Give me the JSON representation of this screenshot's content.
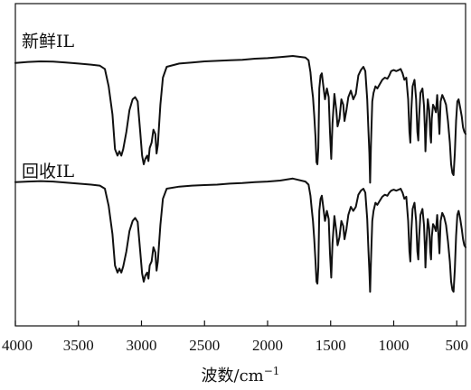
{
  "chart_data": {
    "type": "line",
    "title": "",
    "xlabel": "波数/cm",
    "xlabel_superscript": "−1",
    "ylabel": "",
    "xlim": [
      4000,
      430
    ],
    "x_reversed": true,
    "xticks": [
      4000,
      3500,
      3000,
      2500,
      2000,
      1500,
      1000,
      500
    ],
    "grid": false,
    "legend": "none",
    "y_units": "relative transmittance (stacked, offset)",
    "line_color": "#111111",
    "series": [
      {
        "name": "新鲜IL",
        "offset": 1,
        "points": [
          [
            4000,
            0.935
          ],
          [
            3900,
            0.945
          ],
          [
            3800,
            0.95
          ],
          [
            3700,
            0.948
          ],
          [
            3600,
            0.94
          ],
          [
            3500,
            0.93
          ],
          [
            3400,
            0.92
          ],
          [
            3330,
            0.91
          ],
          [
            3290,
            0.88
          ],
          [
            3260,
            0.72
          ],
          [
            3230,
            0.46
          ],
          [
            3210,
            0.14
          ],
          [
            3190,
            0.08
          ],
          [
            3175,
            0.12
          ],
          [
            3160,
            0.08
          ],
          [
            3145,
            0.14
          ],
          [
            3120,
            0.3
          ],
          [
            3095,
            0.5
          ],
          [
            3070,
            0.6
          ],
          [
            3050,
            0.62
          ],
          [
            3030,
            0.58
          ],
          [
            3010,
            0.3
          ],
          [
            2995,
            0.08
          ],
          [
            2982,
            0.0
          ],
          [
            2970,
            0.05
          ],
          [
            2955,
            0.08
          ],
          [
            2945,
            0.03
          ],
          [
            2935,
            0.15
          ],
          [
            2920,
            0.2
          ],
          [
            2905,
            0.32
          ],
          [
            2890,
            0.28
          ],
          [
            2880,
            0.1
          ],
          [
            2870,
            0.18
          ],
          [
            2850,
            0.55
          ],
          [
            2830,
            0.8
          ],
          [
            2800,
            0.9
          ],
          [
            2700,
            0.93
          ],
          [
            2600,
            0.94
          ],
          [
            2500,
            0.95
          ],
          [
            2400,
            0.955
          ],
          [
            2300,
            0.96
          ],
          [
            2200,
            0.965
          ],
          [
            2100,
            0.975
          ],
          [
            2000,
            0.98
          ],
          [
            1900,
            0.99
          ],
          [
            1800,
            1.0
          ],
          [
            1700,
            0.985
          ],
          [
            1675,
            0.96
          ],
          [
            1660,
            0.85
          ],
          [
            1650,
            0.72
          ],
          [
            1640,
            0.62
          ],
          [
            1630,
            0.45
          ],
          [
            1620,
            0.25
          ],
          [
            1612,
            0.02
          ],
          [
            1605,
            0.0
          ],
          [
            1598,
            0.15
          ],
          [
            1590,
            0.7
          ],
          [
            1580,
            0.82
          ],
          [
            1570,
            0.84
          ],
          [
            1560,
            0.74
          ],
          [
            1545,
            0.6
          ],
          [
            1530,
            0.7
          ],
          [
            1515,
            0.62
          ],
          [
            1505,
            0.3
          ],
          [
            1495,
            0.05
          ],
          [
            1485,
            0.38
          ],
          [
            1470,
            0.65
          ],
          [
            1455,
            0.5
          ],
          [
            1445,
            0.35
          ],
          [
            1430,
            0.42
          ],
          [
            1415,
            0.6
          ],
          [
            1400,
            0.55
          ],
          [
            1390,
            0.4
          ],
          [
            1375,
            0.5
          ],
          [
            1360,
            0.62
          ],
          [
            1340,
            0.68
          ],
          [
            1320,
            0.6
          ],
          [
            1300,
            0.65
          ],
          [
            1280,
            0.82
          ],
          [
            1260,
            0.87
          ],
          [
            1240,
            0.9
          ],
          [
            1225,
            0.86
          ],
          [
            1210,
            0.6
          ],
          [
            1200,
            0.3
          ],
          [
            1193,
            0.1
          ],
          [
            1187,
            -0.17
          ],
          [
            1180,
            0.2
          ],
          [
            1170,
            0.58
          ],
          [
            1160,
            0.66
          ],
          [
            1145,
            0.72
          ],
          [
            1130,
            0.7
          ],
          [
            1110,
            0.74
          ],
          [
            1090,
            0.78
          ],
          [
            1070,
            0.8
          ],
          [
            1050,
            0.79
          ],
          [
            1035,
            0.82
          ],
          [
            1020,
            0.86
          ],
          [
            1000,
            0.87
          ],
          [
            980,
            0.86
          ],
          [
            960,
            0.87
          ],
          [
            945,
            0.88
          ],
          [
            930,
            0.84
          ],
          [
            915,
            0.78
          ],
          [
            900,
            0.8
          ],
          [
            885,
            0.6
          ],
          [
            875,
            0.3
          ],
          [
            868,
            0.2
          ],
          [
            860,
            0.5
          ],
          [
            850,
            0.72
          ],
          [
            835,
            0.78
          ],
          [
            822,
            0.6
          ],
          [
            812,
            0.3
          ],
          [
            805,
            0.22
          ],
          [
            798,
            0.45
          ],
          [
            788,
            0.66
          ],
          [
            772,
            0.7
          ],
          [
            760,
            0.54
          ],
          [
            752,
            0.3
          ],
          [
            748,
            0.12
          ],
          [
            742,
            0.32
          ],
          [
            730,
            0.6
          ],
          [
            718,
            0.5
          ],
          [
            710,
            0.28
          ],
          [
            704,
            0.2
          ],
          [
            698,
            0.42
          ],
          [
            688,
            0.55
          ],
          [
            676,
            0.52
          ],
          [
            665,
            0.48
          ],
          [
            655,
            0.64
          ],
          [
            645,
            0.45
          ],
          [
            637,
            0.28
          ],
          [
            628,
            0.58
          ],
          [
            615,
            0.64
          ],
          [
            600,
            0.6
          ],
          [
            585,
            0.55
          ],
          [
            570,
            0.4
          ],
          [
            555,
            0.2
          ],
          [
            545,
            0.0
          ],
          [
            535,
            -0.08
          ],
          [
            525,
            -0.1
          ],
          [
            515,
            0.1
          ],
          [
            505,
            0.4
          ],
          [
            495,
            0.58
          ],
          [
            485,
            0.6
          ],
          [
            472,
            0.52
          ],
          [
            460,
            0.44
          ],
          [
            450,
            0.34
          ],
          [
            440,
            0.3
          ],
          [
            430,
            0.28
          ]
        ]
      },
      {
        "name": "回收IL",
        "offset": 0,
        "points": [
          [
            4000,
            0.985
          ],
          [
            3900,
            0.99
          ],
          [
            3800,
            0.995
          ],
          [
            3700,
            0.99
          ],
          [
            3600,
            0.98
          ],
          [
            3500,
            0.97
          ],
          [
            3400,
            0.96
          ],
          [
            3330,
            0.95
          ],
          [
            3290,
            0.92
          ],
          [
            3260,
            0.75
          ],
          [
            3230,
            0.47
          ],
          [
            3210,
            0.16
          ],
          [
            3190,
            0.09
          ],
          [
            3175,
            0.13
          ],
          [
            3160,
            0.09
          ],
          [
            3145,
            0.15
          ],
          [
            3120,
            0.3
          ],
          [
            3095,
            0.5
          ],
          [
            3070,
            0.6
          ],
          [
            3050,
            0.63
          ],
          [
            3030,
            0.59
          ],
          [
            3010,
            0.3
          ],
          [
            2995,
            0.08
          ],
          [
            2982,
            0.0
          ],
          [
            2970,
            0.06
          ],
          [
            2955,
            0.09
          ],
          [
            2945,
            0.03
          ],
          [
            2935,
            0.16
          ],
          [
            2920,
            0.2
          ],
          [
            2905,
            0.34
          ],
          [
            2890,
            0.29
          ],
          [
            2880,
            0.11
          ],
          [
            2870,
            0.2
          ],
          [
            2850,
            0.56
          ],
          [
            2830,
            0.82
          ],
          [
            2800,
            0.92
          ],
          [
            2700,
            0.94
          ],
          [
            2600,
            0.95
          ],
          [
            2500,
            0.955
          ],
          [
            2400,
            0.96
          ],
          [
            2300,
            0.97
          ],
          [
            2200,
            0.975
          ],
          [
            2100,
            0.985
          ],
          [
            2000,
            0.99
          ],
          [
            1900,
            1.0
          ],
          [
            1800,
            1.02
          ],
          [
            1700,
            0.99
          ],
          [
            1675,
            0.96
          ],
          [
            1660,
            0.85
          ],
          [
            1650,
            0.72
          ],
          [
            1640,
            0.6
          ],
          [
            1630,
            0.42
          ],
          [
            1620,
            0.2
          ],
          [
            1612,
            0.0
          ],
          [
            1605,
            -0.02
          ],
          [
            1598,
            0.14
          ],
          [
            1590,
            0.7
          ],
          [
            1580,
            0.82
          ],
          [
            1570,
            0.85
          ],
          [
            1560,
            0.75
          ],
          [
            1545,
            0.6
          ],
          [
            1530,
            0.7
          ],
          [
            1515,
            0.62
          ],
          [
            1505,
            0.28
          ],
          [
            1495,
            0.04
          ],
          [
            1485,
            0.38
          ],
          [
            1470,
            0.65
          ],
          [
            1455,
            0.5
          ],
          [
            1445,
            0.36
          ],
          [
            1430,
            0.44
          ],
          [
            1415,
            0.6
          ],
          [
            1400,
            0.55
          ],
          [
            1390,
            0.42
          ],
          [
            1375,
            0.52
          ],
          [
            1360,
            0.66
          ],
          [
            1340,
            0.74
          ],
          [
            1320,
            0.7
          ],
          [
            1300,
            0.74
          ],
          [
            1280,
            0.86
          ],
          [
            1260,
            0.9
          ],
          [
            1240,
            0.92
          ],
          [
            1225,
            0.88
          ],
          [
            1210,
            0.62
          ],
          [
            1200,
            0.3
          ],
          [
            1193,
            0.1
          ],
          [
            1187,
            -0.1
          ],
          [
            1180,
            0.22
          ],
          [
            1170,
            0.6
          ],
          [
            1160,
            0.7
          ],
          [
            1145,
            0.78
          ],
          [
            1130,
            0.76
          ],
          [
            1110,
            0.8
          ],
          [
            1090,
            0.84
          ],
          [
            1070,
            0.86
          ],
          [
            1050,
            0.85
          ],
          [
            1035,
            0.88
          ],
          [
            1020,
            0.9
          ],
          [
            1000,
            0.91
          ],
          [
            980,
            0.9
          ],
          [
            960,
            0.91
          ],
          [
            945,
            0.92
          ],
          [
            930,
            0.88
          ],
          [
            915,
            0.82
          ],
          [
            900,
            0.84
          ],
          [
            885,
            0.6
          ],
          [
            875,
            0.3
          ],
          [
            868,
            0.2
          ],
          [
            860,
            0.5
          ],
          [
            850,
            0.72
          ],
          [
            835,
            0.78
          ],
          [
            822,
            0.6
          ],
          [
            812,
            0.3
          ],
          [
            805,
            0.22
          ],
          [
            798,
            0.45
          ],
          [
            788,
            0.66
          ],
          [
            772,
            0.72
          ],
          [
            760,
            0.56
          ],
          [
            752,
            0.32
          ],
          [
            748,
            0.14
          ],
          [
            742,
            0.34
          ],
          [
            730,
            0.62
          ],
          [
            718,
            0.52
          ],
          [
            710,
            0.3
          ],
          [
            704,
            0.22
          ],
          [
            698,
            0.44
          ],
          [
            688,
            0.57
          ],
          [
            676,
            0.54
          ],
          [
            665,
            0.5
          ],
          [
            655,
            0.66
          ],
          [
            645,
            0.46
          ],
          [
            637,
            0.28
          ],
          [
            628,
            0.6
          ],
          [
            615,
            0.68
          ],
          [
            600,
            0.64
          ],
          [
            585,
            0.56
          ],
          [
            570,
            0.4
          ],
          [
            555,
            0.2
          ],
          [
            545,
            0.0
          ],
          [
            535,
            -0.08
          ],
          [
            525,
            -0.1
          ],
          [
            515,
            0.12
          ],
          [
            505,
            0.45
          ],
          [
            495,
            0.66
          ],
          [
            485,
            0.7
          ],
          [
            472,
            0.62
          ],
          [
            460,
            0.52
          ],
          [
            450,
            0.42
          ],
          [
            440,
            0.36
          ],
          [
            430,
            0.34
          ]
        ]
      }
    ]
  }
}
